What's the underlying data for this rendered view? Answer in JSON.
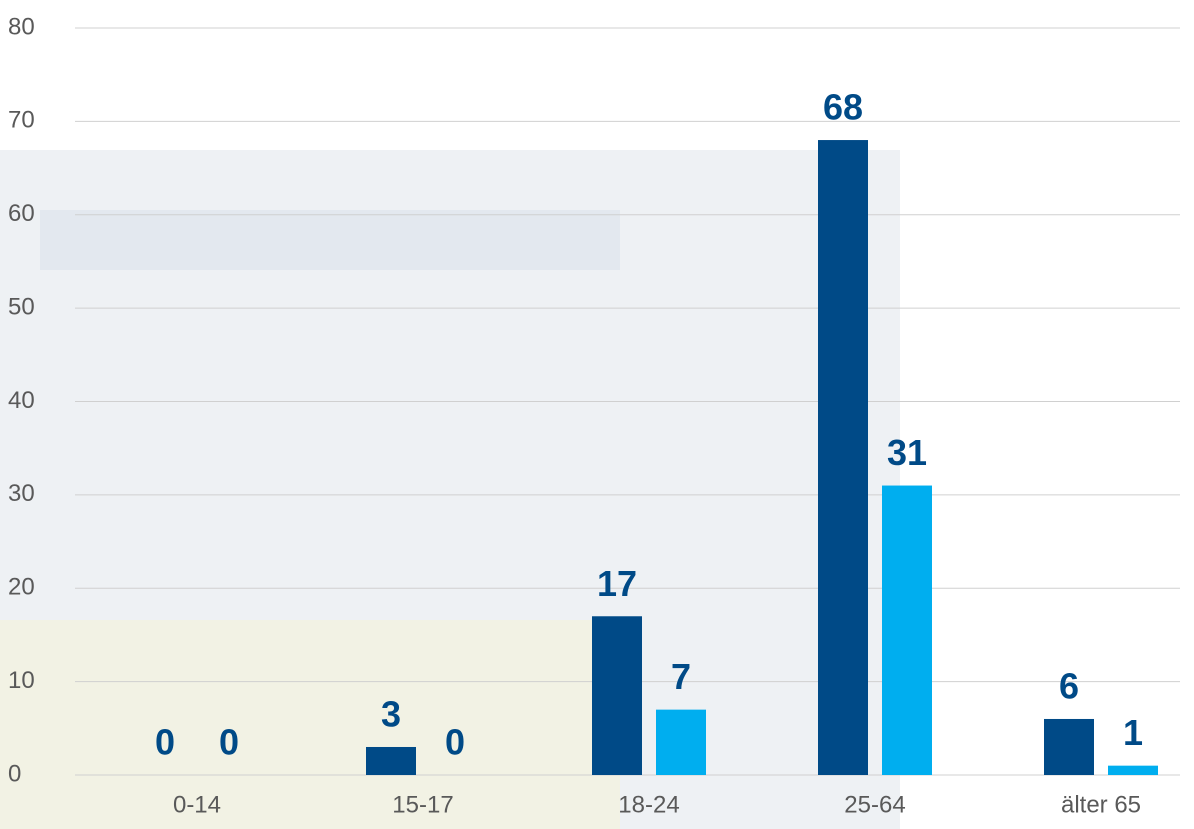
{
  "chart_data": {
    "type": "bar",
    "categories": [
      "0-14",
      "15-17",
      "18-24",
      "25-64",
      "älter 65"
    ],
    "series": [
      {
        "color": "#004a87",
        "values": [
          0,
          3,
          17,
          68,
          6
        ]
      },
      {
        "color": "#00aeef",
        "values": [
          0,
          0,
          7,
          31,
          1
        ]
      }
    ],
    "ylim": [
      0,
      80
    ],
    "yticks": [
      0,
      10,
      20,
      30,
      40,
      50,
      60,
      70,
      80
    ],
    "grid": true
  }
}
